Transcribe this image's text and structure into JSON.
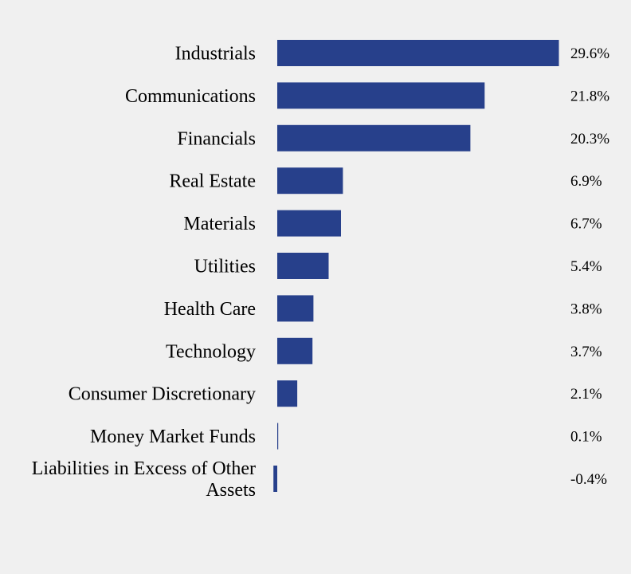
{
  "chart_data": {
    "type": "bar",
    "orientation": "horizontal",
    "categories": [
      "Industrials",
      "Communications",
      "Financials",
      "Real Estate",
      "Materials",
      "Utilities",
      "Health Care",
      "Technology",
      "Consumer Discretionary",
      "Money Market Funds",
      "Liabilities in Excess of Other Assets"
    ],
    "category_lines": [
      [
        "Industrials"
      ],
      [
        "Communications"
      ],
      [
        "Financials"
      ],
      [
        "Real Estate"
      ],
      [
        "Materials"
      ],
      [
        "Utilities"
      ],
      [
        "Health Care"
      ],
      [
        "Technology"
      ],
      [
        "Consumer Discretionary"
      ],
      [
        "Money Market Funds"
      ],
      [
        "Liabilities in Excess of Other",
        "Assets"
      ]
    ],
    "values": [
      29.6,
      21.8,
      20.3,
      6.9,
      6.7,
      5.4,
      3.8,
      3.7,
      2.1,
      0.1,
      -0.4
    ],
    "value_labels": [
      "29.6%",
      "21.8%",
      "20.3%",
      "6.9%",
      "6.7%",
      "5.4%",
      "3.8%",
      "3.7%",
      "2.1%",
      "0.1%",
      "-0.4%"
    ],
    "unit": "%",
    "title": "",
    "xlabel": "",
    "ylabel": "",
    "xlim": [
      -0.4,
      29.6
    ],
    "grid": false,
    "legend": "none",
    "bar_color": "#27408b",
    "background": "#f0f0f0"
  }
}
